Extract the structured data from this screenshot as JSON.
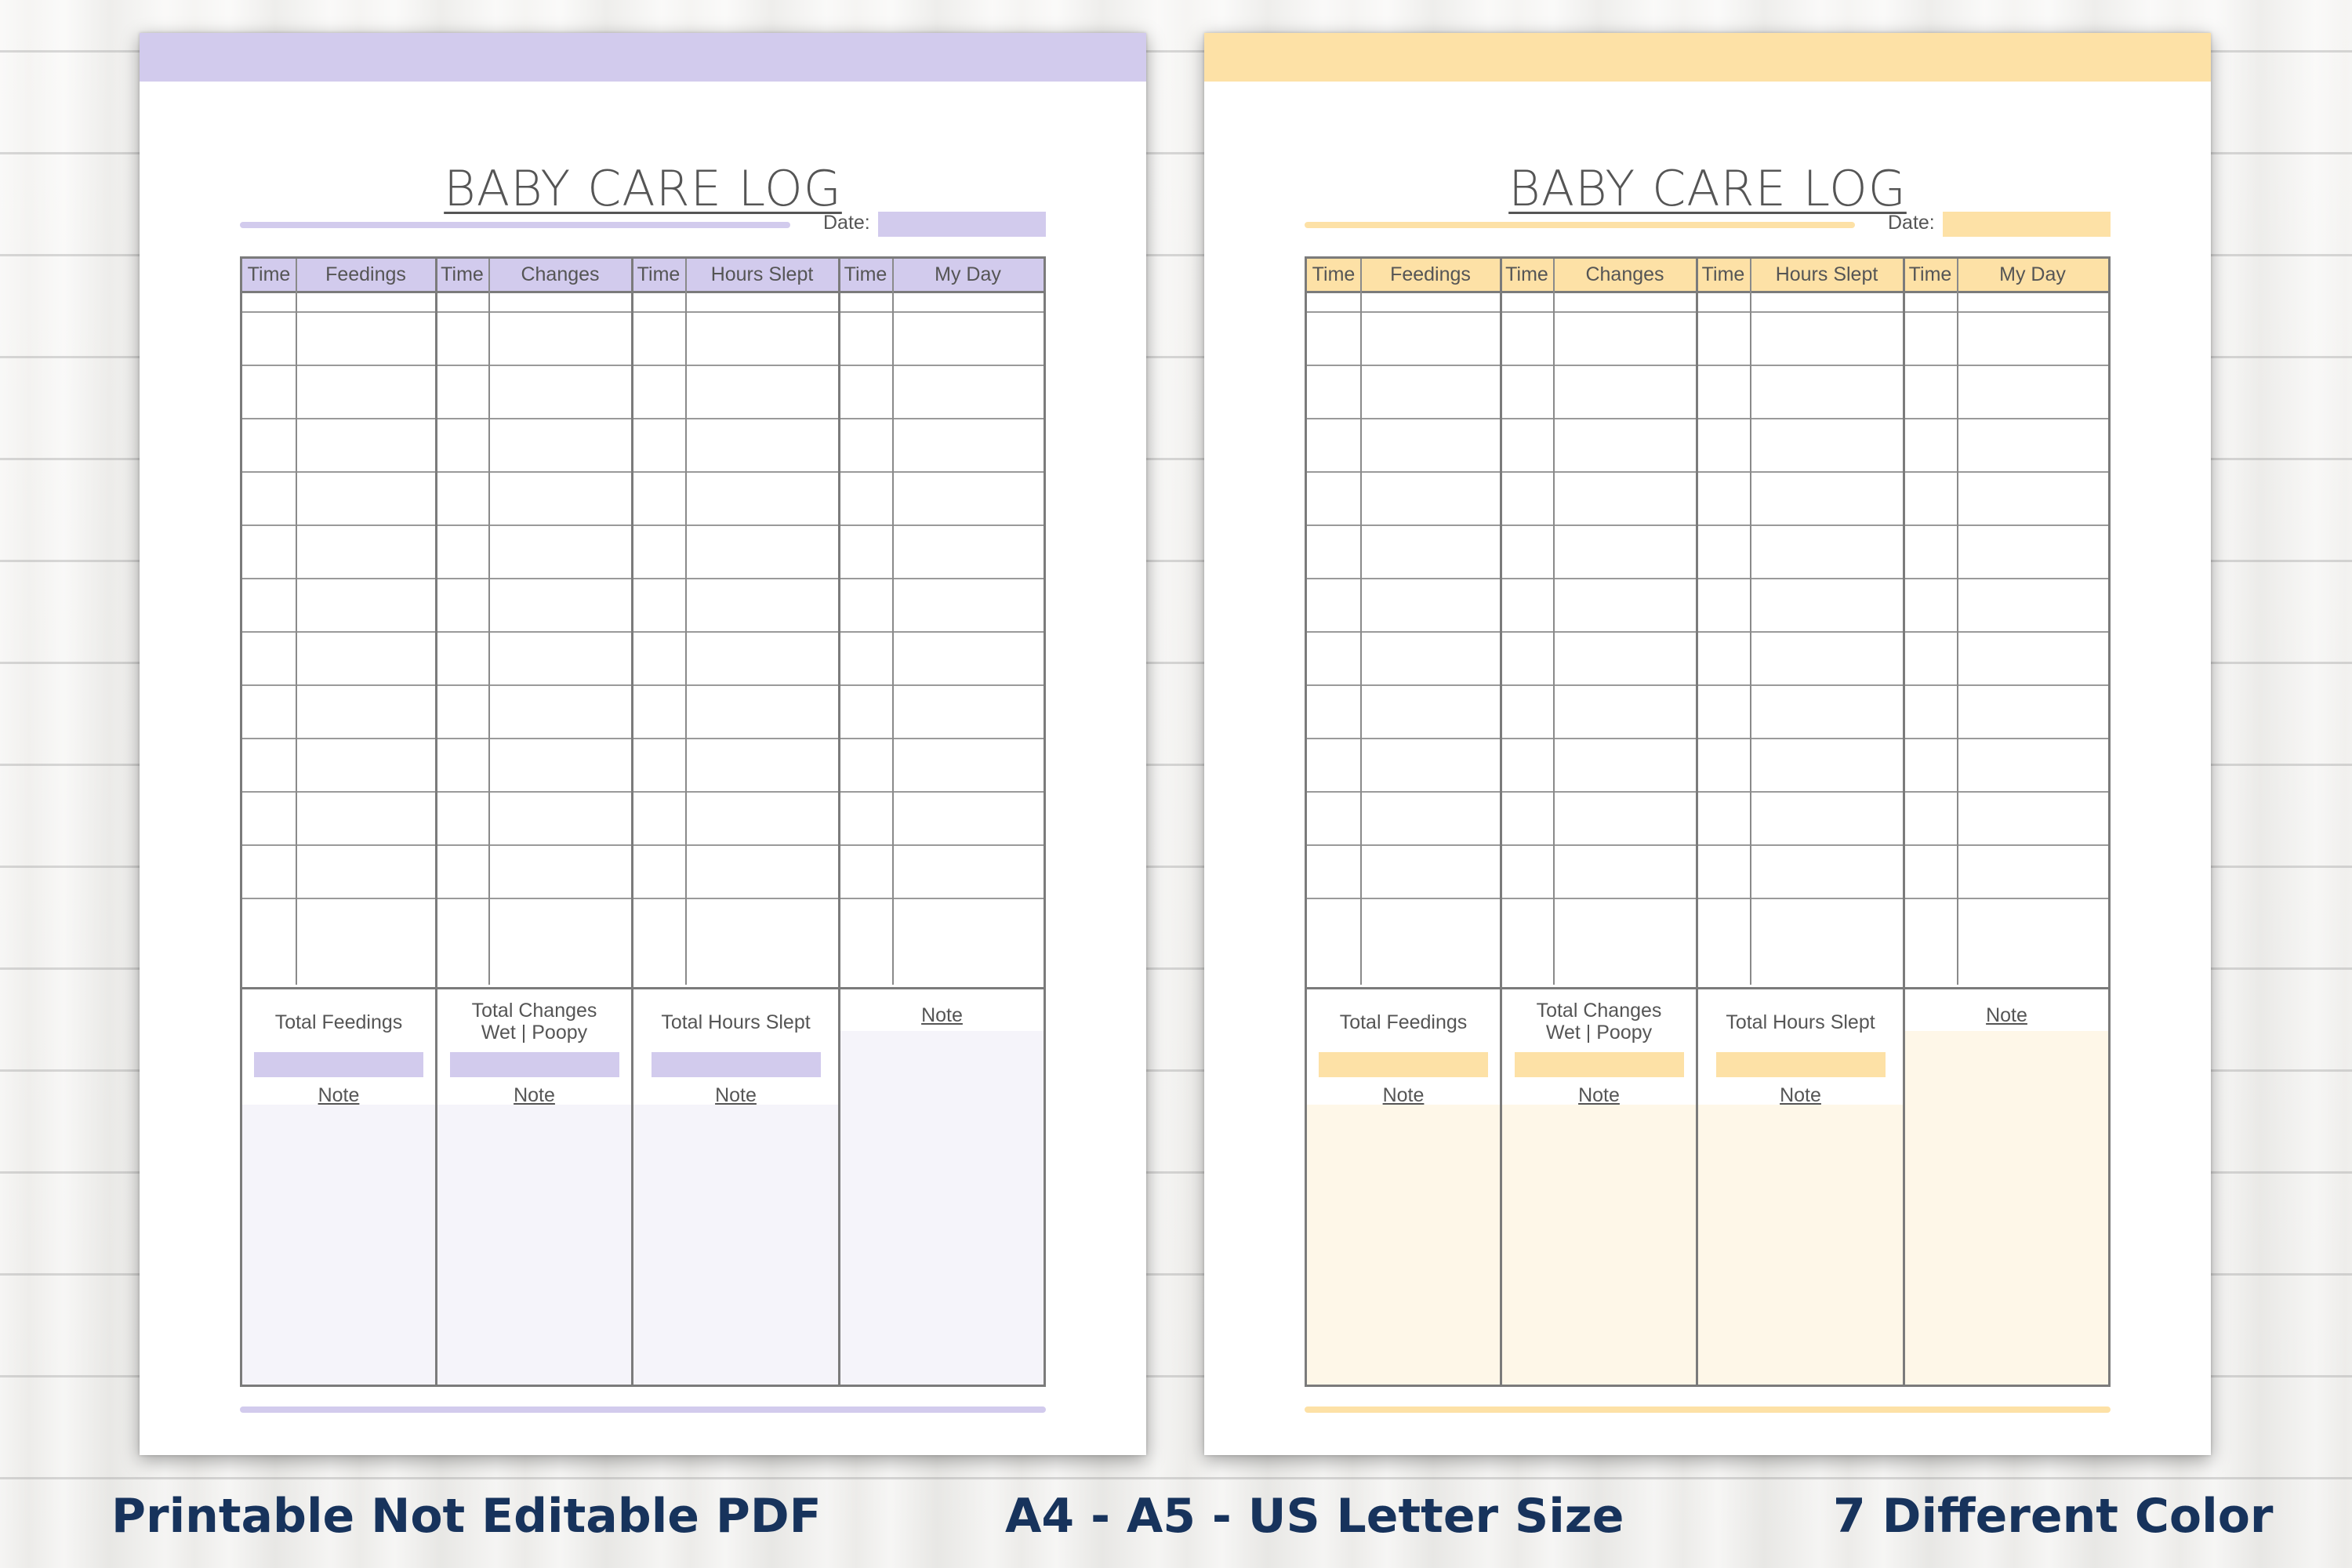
{
  "colors": {
    "lavender": "#d2cbed",
    "lavender_light": "#f5f4fa",
    "peach": "#fde1a6",
    "peach_light": "#fef7e8",
    "caption": "#17335c"
  },
  "pages": [
    {
      "theme": "lavender",
      "title": "BABY CARE LOG",
      "date_label": "Date:",
      "columns": [
        "Time",
        "Feedings",
        "Time",
        "Changes",
        "Time",
        "Hours Slept",
        "Time",
        "My Day"
      ],
      "summary": {
        "feedings": "Total Feedings",
        "changes_line1": "Total Changes",
        "changes_line2": "Wet | Poopy",
        "hours": "Total Hours Slept",
        "note": "Note"
      }
    },
    {
      "theme": "peach",
      "title": "BABY CARE LOG",
      "date_label": "Date:",
      "columns": [
        "Time",
        "Feedings",
        "Time",
        "Changes",
        "Time",
        "Hours Slept",
        "Time",
        "My Day"
      ],
      "summary": {
        "feedings": "Total Feedings",
        "changes_line1": "Total Changes",
        "changes_line2": "Wet | Poopy",
        "hours": "Total Hours Slept",
        "note": "Note"
      }
    }
  ],
  "captions": {
    "left": "Printable Not Editable PDF",
    "center": "A4 - A5 - US Letter Size",
    "right": "7 Different Color"
  }
}
